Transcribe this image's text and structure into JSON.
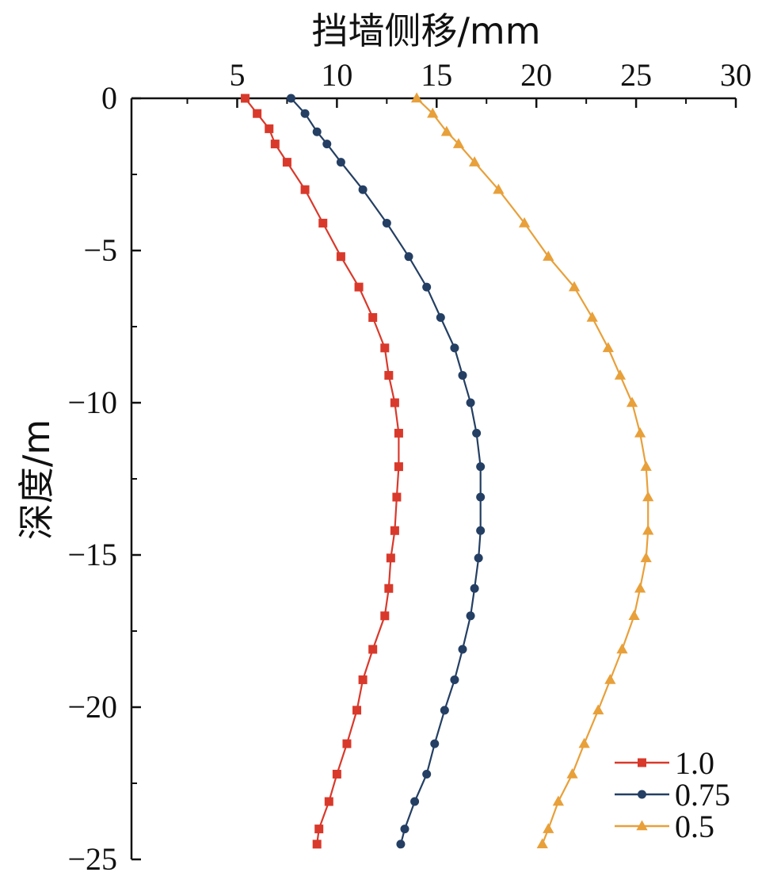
{
  "chart_data": {
    "type": "line",
    "xlabel": "挡墙侧移/mm",
    "ylabel": "深度/m",
    "xlim": [
      -0.3,
      30
    ],
    "ylim": [
      -25,
      0
    ],
    "x_ticks": [
      5,
      10,
      15,
      20,
      25,
      30
    ],
    "y_ticks": [
      0,
      -5,
      -10,
      -15,
      -20,
      -25
    ],
    "x_tick_labels": [
      "5",
      "10",
      "15",
      "20",
      "25",
      "30"
    ],
    "y_tick_labels": [
      "0",
      "−5",
      "−10",
      "−15",
      "−20",
      "−25"
    ],
    "x_axis_position": "top",
    "grid": false,
    "legend_position": "bottom-right",
    "series": [
      {
        "name": "1.0",
        "color": "#d9392b",
        "marker": "square",
        "points": [
          [
            5.4,
            0
          ],
          [
            6.0,
            -0.5
          ],
          [
            6.6,
            -1.0
          ],
          [
            6.9,
            -1.5
          ],
          [
            7.5,
            -2.1
          ],
          [
            8.4,
            -3.0
          ],
          [
            9.3,
            -4.1
          ],
          [
            10.2,
            -5.2
          ],
          [
            11.1,
            -6.2
          ],
          [
            11.8,
            -7.2
          ],
          [
            12.4,
            -8.2
          ],
          [
            12.6,
            -9.1
          ],
          [
            12.9,
            -10.0
          ],
          [
            13.1,
            -11.0
          ],
          [
            13.1,
            -12.1
          ],
          [
            13.0,
            -13.1
          ],
          [
            12.9,
            -14.2
          ],
          [
            12.7,
            -15.1
          ],
          [
            12.6,
            -16.1
          ],
          [
            12.4,
            -17.0
          ],
          [
            11.8,
            -18.1
          ],
          [
            11.3,
            -19.1
          ],
          [
            11.0,
            -20.1
          ],
          [
            10.5,
            -21.2
          ],
          [
            10.0,
            -22.2
          ],
          [
            9.6,
            -23.1
          ],
          [
            9.1,
            -24.0
          ],
          [
            9.0,
            -24.5
          ]
        ]
      },
      {
        "name": "0.75",
        "color": "#243f63",
        "marker": "circle",
        "points": [
          [
            7.7,
            0
          ],
          [
            8.4,
            -0.5
          ],
          [
            9.0,
            -1.1
          ],
          [
            9.5,
            -1.5
          ],
          [
            10.2,
            -2.1
          ],
          [
            11.3,
            -3.0
          ],
          [
            12.5,
            -4.1
          ],
          [
            13.6,
            -5.2
          ],
          [
            14.5,
            -6.2
          ],
          [
            15.2,
            -7.2
          ],
          [
            15.9,
            -8.2
          ],
          [
            16.3,
            -9.1
          ],
          [
            16.7,
            -10.0
          ],
          [
            17.0,
            -11.0
          ],
          [
            17.2,
            -12.1
          ],
          [
            17.2,
            -13.1
          ],
          [
            17.2,
            -14.2
          ],
          [
            17.1,
            -15.1
          ],
          [
            16.9,
            -16.1
          ],
          [
            16.7,
            -17.0
          ],
          [
            16.3,
            -18.1
          ],
          [
            15.9,
            -19.1
          ],
          [
            15.4,
            -20.1
          ],
          [
            14.9,
            -21.2
          ],
          [
            14.5,
            -22.2
          ],
          [
            13.9,
            -23.1
          ],
          [
            13.4,
            -24.0
          ],
          [
            13.2,
            -24.5
          ]
        ]
      },
      {
        "name": "0.5",
        "color": "#e8a03a",
        "marker": "triangle",
        "points": [
          [
            14.0,
            0
          ],
          [
            14.8,
            -0.5
          ],
          [
            15.5,
            -1.1
          ],
          [
            16.1,
            -1.5
          ],
          [
            16.9,
            -2.1
          ],
          [
            18.1,
            -3.0
          ],
          [
            19.4,
            -4.1
          ],
          [
            20.6,
            -5.2
          ],
          [
            21.9,
            -6.2
          ],
          [
            22.8,
            -7.2
          ],
          [
            23.6,
            -8.2
          ],
          [
            24.2,
            -9.1
          ],
          [
            24.8,
            -10.0
          ],
          [
            25.2,
            -11.0
          ],
          [
            25.5,
            -12.1
          ],
          [
            25.6,
            -13.1
          ],
          [
            25.6,
            -14.2
          ],
          [
            25.5,
            -15.1
          ],
          [
            25.2,
            -16.1
          ],
          [
            24.9,
            -17.0
          ],
          [
            24.3,
            -18.1
          ],
          [
            23.7,
            -19.1
          ],
          [
            23.1,
            -20.1
          ],
          [
            22.4,
            -21.2
          ],
          [
            21.8,
            -22.2
          ],
          [
            21.1,
            -23.1
          ],
          [
            20.6,
            -24.0
          ],
          [
            20.3,
            -24.5
          ]
        ]
      }
    ]
  }
}
